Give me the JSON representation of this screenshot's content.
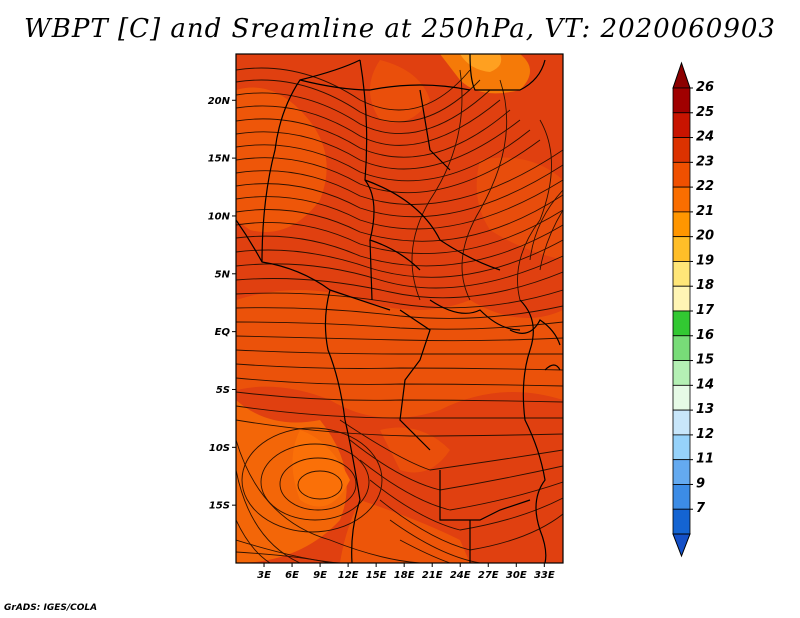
{
  "title": "WBPT [C] and Sreamline at 250hPa, VT: 2020060903",
  "credit": "GrADS: IGES/COLA",
  "map": {
    "lat_labels": [
      "20N",
      "15N",
      "10N",
      "5N",
      "EQ",
      "5S",
      "10S",
      "15S"
    ],
    "lon_labels": [
      "3E",
      "6E",
      "9E",
      "12E",
      "15E",
      "18E",
      "21E",
      "24E",
      "27E",
      "30E",
      "33E"
    ],
    "lat_values": [
      20,
      15,
      10,
      5,
      0,
      -5,
      -10,
      -15
    ],
    "lon_values": [
      3,
      6,
      9,
      12,
      15,
      18,
      21,
      24,
      27,
      30,
      33
    ],
    "lon_range": [
      0,
      35
    ],
    "lat_range": [
      -20,
      24
    ]
  },
  "colorbar": {
    "labels": [
      "26",
      "25",
      "24",
      "23",
      "22",
      "21",
      "20",
      "19",
      "18",
      "17",
      "16",
      "15",
      "14",
      "13",
      "12",
      "11",
      "9",
      "7"
    ],
    "colors": [
      "#a00000",
      "#c81400",
      "#dc3200",
      "#f05000",
      "#fa6e00",
      "#ff9600",
      "#ffbe28",
      "#ffe678",
      "#fff5b4",
      "#32c832",
      "#78dc78",
      "#b4f0b4",
      "#e6fae6",
      "#c8e6fa",
      "#96d2fa",
      "#64aaf0",
      "#3c8ce6",
      "#1464d2"
    ]
  }
}
